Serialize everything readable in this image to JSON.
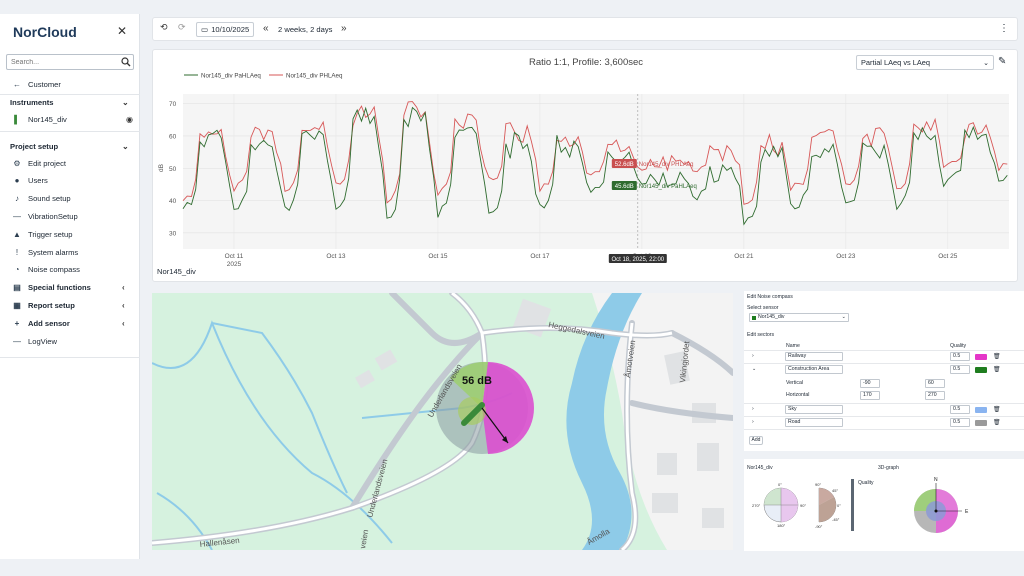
{
  "app": {
    "brand": "NorCloud",
    "search_placeholder": "Search...",
    "close_glyph": "✕"
  },
  "sidebar": {
    "customer": "Customer",
    "instruments_title": "Instruments",
    "instrument_name": "Nor145_div",
    "project_setup_title": "Project setup",
    "items": [
      {
        "label": "Edit project",
        "icon": "gear-icon"
      },
      {
        "label": "Users",
        "icon": "user-icon"
      },
      {
        "label": "Sound setup",
        "icon": "note-icon"
      },
      {
        "label": "VibrationSetup",
        "icon": "dash-icon"
      },
      {
        "label": "Trigger setup",
        "icon": "bell-icon"
      },
      {
        "label": "System alarms",
        "icon": "exclamation-icon"
      },
      {
        "label": "Noise compass",
        "icon": "compass-icon"
      },
      {
        "label": "Special functions",
        "icon": "list-icon"
      },
      {
        "label": "Report setup",
        "icon": "document-icon"
      },
      {
        "label": "Add sensor",
        "icon": "plus-icon"
      },
      {
        "label": "LogView",
        "icon": "dash-icon"
      }
    ]
  },
  "toolbar": {
    "date": "10/10/2025",
    "range": "2 weeks, 2 days"
  },
  "chart_panel": {
    "title": "Ratio 1:1, Profile: 3,600sec",
    "select_value": "Partial LAeq vs LAeq",
    "bottom_label": "Nor145_div"
  },
  "chart_data": {
    "type": "line",
    "title": "Ratio 1:1, Profile: 3,600sec",
    "ylabel": "dB",
    "ylim": [
      25,
      73
    ],
    "yticks": [
      "30",
      "40",
      "50",
      "60",
      "70"
    ],
    "xticks": [
      "Oct 11",
      "Oct 13",
      "Oct 15",
      "Oct 17",
      "Oct 19",
      "Oct 21",
      "Oct 23",
      "Oct 25"
    ],
    "xtick_sub": "2025",
    "grid": true,
    "legend_position": "top-left",
    "series": [
      {
        "name": "Nor145_div PaHLAeq",
        "color": "#2f6b2f",
        "hover_value": "45.6dB",
        "hover_label": "Nor145_div PaHLAeq"
      },
      {
        "name": "Nor145_div PHLAeq",
        "color": "#d75757",
        "hover_value": "52.6dB",
        "hover_label": "Nor145_div PHLAeq"
      }
    ],
    "hover_time": "Oct 18, 2025, 22:00",
    "daily_peaks_phl": [
      62,
      62,
      64,
      68,
      68,
      65,
      63,
      61,
      58,
      52,
      55,
      58,
      62,
      62,
      64,
      63
    ],
    "daily_troughs_phl": [
      40,
      44,
      43,
      45,
      40,
      42,
      46,
      44,
      48,
      50,
      48,
      38,
      44,
      45,
      44,
      50
    ],
    "daily_peaks_pahl": [
      60,
      58,
      60,
      67,
      67,
      62,
      58,
      58,
      54,
      48,
      50,
      55,
      57,
      58,
      60,
      62
    ],
    "daily_troughs_pahl": [
      37,
      37,
      37,
      38,
      35,
      36,
      36,
      38,
      42,
      45,
      40,
      32,
      38,
      38,
      38,
      45
    ]
  },
  "map": {
    "db_label": "56 dB",
    "streets": [
      "Heggedalsveien",
      "Underlandsveien",
      "Underlandsveien",
      "Åmotveien",
      "Vikingjordet",
      "Hallenåsen",
      "Åmolla",
      "veien"
    ],
    "sector_colors": {
      "magenta": "#db4fcf",
      "green": "#8ec26d",
      "gray": "#9aa4a8"
    }
  },
  "config": {
    "title": "Edit Noise compass",
    "select_sensor_label": "Select sensor",
    "sensor_value": "Nor145_div",
    "edit_sectors_label": "Edit sectors",
    "col_name": "Name",
    "col_quality": "Quality",
    "sectors": [
      {
        "name": "Railway",
        "quality": "0.5",
        "color": "#e536c8"
      },
      {
        "name": "Construction Area",
        "quality": "0.5",
        "color": "#1f7d1f"
      },
      {
        "name": "Sky",
        "quality": "0.5",
        "color": "#8ab4f0"
      },
      {
        "name": "Road",
        "quality": "0.5",
        "color": "#9a9a9a"
      }
    ],
    "vertical_label": "Vertical",
    "horizontal_label": "Horizontal",
    "vertical_from": "-90",
    "vertical_to": "60",
    "horizontal_from": "170",
    "horizontal_to": "270",
    "add_label": "Add"
  },
  "bottom": {
    "sensor_title": "Nor145_div",
    "graph_title": "3D-graph",
    "quality_label": "Quality",
    "compass_labels": [
      "0°",
      "270°",
      "90°",
      "180°",
      "90°",
      "45°",
      "0°",
      "-45°",
      "-90°",
      "N",
      "E"
    ]
  }
}
